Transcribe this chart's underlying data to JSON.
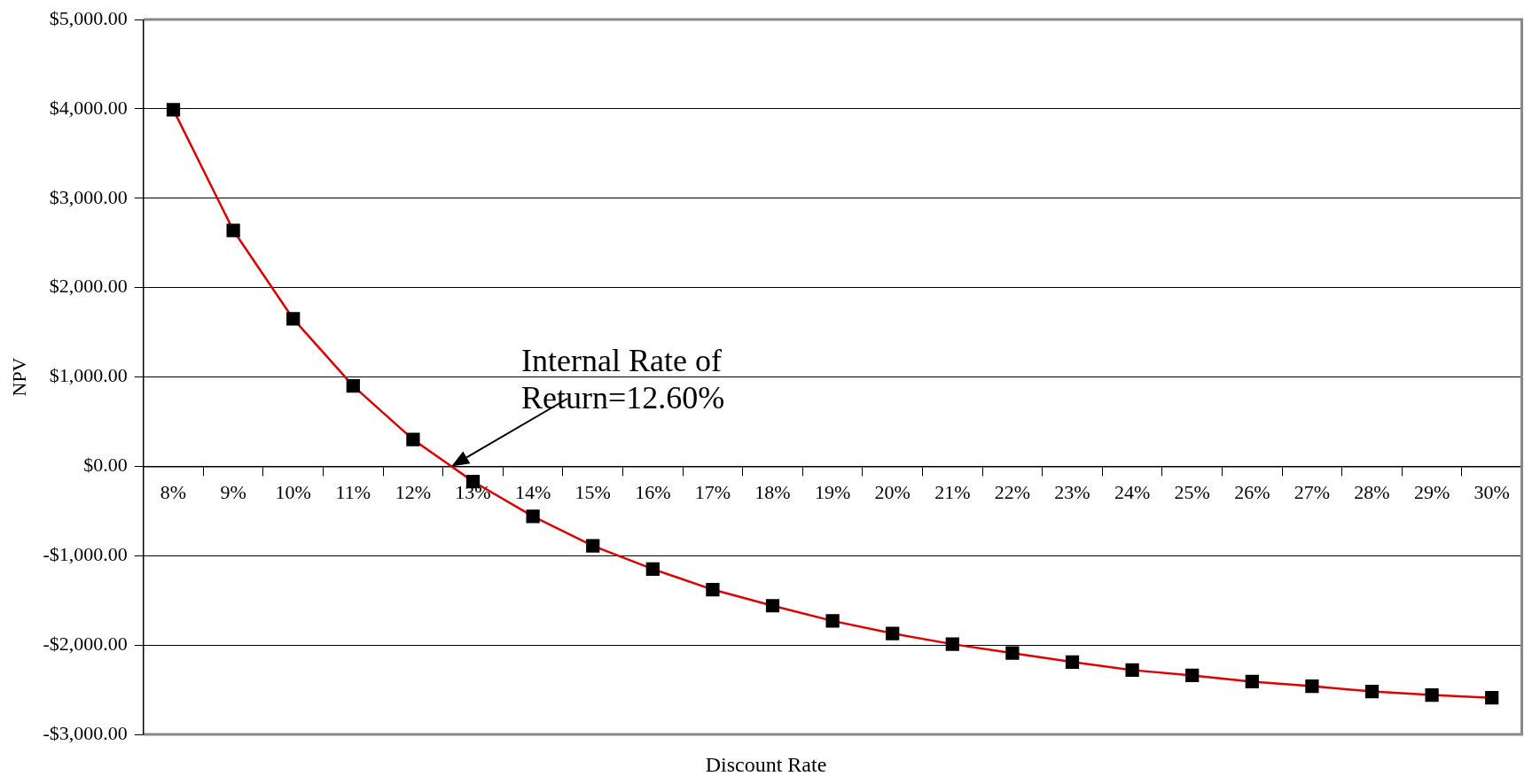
{
  "chart_data": {
    "type": "line",
    "xlabel": "Discount Rate",
    "ylabel": "NPV",
    "categories": [
      "8%",
      "9%",
      "10%",
      "11%",
      "12%",
      "13%",
      "14%",
      "15%",
      "16%",
      "17%",
      "18%",
      "19%",
      "20%",
      "21%",
      "22%",
      "23%",
      "24%",
      "25%",
      "26%",
      "27%",
      "28%",
      "29%",
      "30%"
    ],
    "series": [
      {
        "color": "#e00000",
        "values": [
          3990,
          2640,
          1650,
          900,
          300,
          -170,
          -560,
          -890,
          -1150,
          -1380,
          -1560,
          -1730,
          -1870,
          -1990,
          -2090,
          -2190,
          -2280,
          -2340,
          -2410,
          -2460,
          -2520,
          -2560,
          -2590
        ]
      }
    ],
    "ylim": [
      -3000,
      5000
    ],
    "yticks": [
      {
        "value": -3000,
        "label": "-$3,000.00"
      },
      {
        "value": -2000,
        "label": "-$2,000.00"
      },
      {
        "value": -1000,
        "label": "-$1,000.00"
      },
      {
        "value": 0,
        "label": "$0.00"
      },
      {
        "value": 1000,
        "label": "$1,000.00"
      },
      {
        "value": 2000,
        "label": "$2,000.00"
      },
      {
        "value": 3000,
        "label": "$3,000.00"
      },
      {
        "value": 4000,
        "label": "$4,000.00"
      },
      {
        "value": 5000,
        "label": "$5,000.00"
      }
    ],
    "grid": "y",
    "legend": false,
    "marker": "square",
    "line_style": "solid",
    "annotations": [
      "Internal Rate of Return=12.60%"
    ]
  }
}
